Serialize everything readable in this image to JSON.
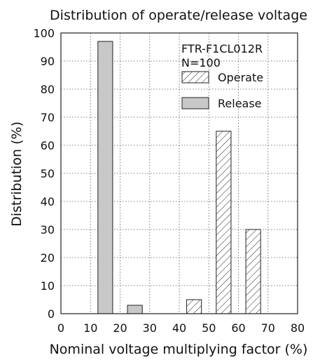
{
  "chart_data": {
    "type": "bar",
    "title": "Distribution of operate/release voltage",
    "xlabel": "Nominal voltage multiplying factor (%)",
    "ylabel": "Distribution (%)",
    "xlim": [
      0,
      80
    ],
    "ylim": [
      0,
      100
    ],
    "xticks": [
      0,
      10,
      20,
      30,
      40,
      50,
      60,
      70,
      80
    ],
    "yticks": [
      0,
      10,
      20,
      30,
      40,
      50,
      60,
      70,
      80,
      90,
      100
    ],
    "grid": true,
    "grid_style": "dotted",
    "bin_width": 5,
    "annotation": [
      "FTR-F1CL012R",
      "N=100"
    ],
    "legend_position": "top-right",
    "series": [
      {
        "name": "Operate",
        "fill": "hatched",
        "bins": [
          {
            "x0": 42.5,
            "x1": 47.5,
            "value": 5
          },
          {
            "x0": 52.5,
            "x1": 57.5,
            "value": 65
          },
          {
            "x0": 62.5,
            "x1": 67.5,
            "value": 30
          }
        ]
      },
      {
        "name": "Release",
        "fill": "#c8c8c8",
        "bins": [
          {
            "x0": 12.5,
            "x1": 17.5,
            "value": 97
          },
          {
            "x0": 22.5,
            "x1": 27.5,
            "value": 3
          }
        ]
      }
    ]
  }
}
